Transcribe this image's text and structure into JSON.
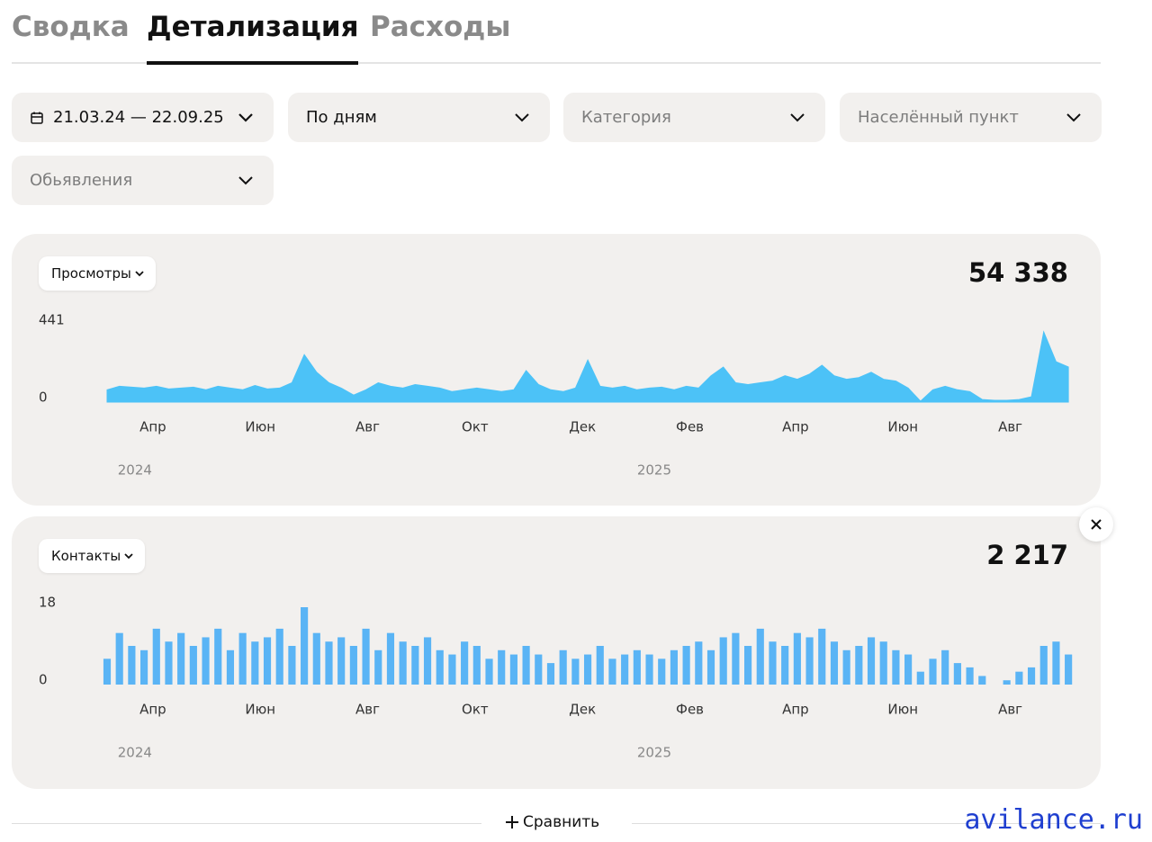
{
  "tabs": {
    "items": [
      "Сводка",
      "Детализация",
      "Расходы"
    ],
    "active": 1
  },
  "filters": {
    "period": "21.03.24 — 22.09.25",
    "grouping": "По дням",
    "category": "Категория",
    "locality": "Населённый пункт",
    "listings": "Обьявления"
  },
  "charts": [
    {
      "type": "area",
      "metric": "Просмотры",
      "total": "54 338",
      "color": "#4cc2f7",
      "x": [
        0,
        7,
        14,
        21,
        28,
        35,
        42,
        49,
        56,
        63,
        70,
        77,
        84,
        91,
        98,
        105,
        112,
        119,
        126,
        133,
        140,
        147,
        154,
        161,
        168,
        175,
        182,
        189,
        196,
        203,
        210,
        217,
        224,
        231,
        238,
        245,
        252,
        259,
        266,
        273,
        280,
        287,
        294,
        301,
        308,
        315,
        322,
        329,
        336,
        343,
        350,
        357,
        364,
        371,
        378,
        385,
        392,
        399,
        406,
        413,
        420,
        427,
        434,
        441,
        448,
        455,
        462,
        469,
        476,
        483,
        490,
        497,
        504,
        511,
        518,
        525,
        532,
        539,
        546
      ],
      "values": [
        70,
        90,
        85,
        80,
        90,
        75,
        80,
        85,
        70,
        90,
        80,
        70,
        95,
        75,
        80,
        110,
        270,
        170,
        110,
        80,
        40,
        70,
        110,
        90,
        80,
        100,
        90,
        80,
        60,
        70,
        80,
        70,
        60,
        70,
        180,
        100,
        70,
        60,
        80,
        240,
        90,
        80,
        90,
        70,
        80,
        85,
        70,
        90,
        80,
        150,
        200,
        110,
        100,
        110,
        120,
        150,
        130,
        160,
        210,
        150,
        130,
        140,
        170,
        130,
        120,
        80,
        5,
        70,
        90,
        70,
        60,
        15,
        10,
        10,
        15,
        30,
        400,
        230,
        200
      ],
      "xlim": [
        0,
        549
      ],
      "ylim": [
        0,
        441
      ],
      "yticks": [
        0,
        441
      ],
      "xticks": [
        {
          "value": 26,
          "label": "Апр"
        },
        {
          "value": 87,
          "label": "Июн"
        },
        {
          "value": 148,
          "label": "Авг"
        },
        {
          "value": 209,
          "label": "Окт"
        },
        {
          "value": 270,
          "label": "Дек"
        },
        {
          "value": 331,
          "label": "Фев"
        },
        {
          "value": 391,
          "label": "Апр"
        },
        {
          "value": 452,
          "label": "Июн"
        },
        {
          "value": 513,
          "label": "Авг"
        }
      ],
      "year_ticks": [
        {
          "value": 6,
          "label": "2024"
        },
        {
          "value": 301,
          "label": "2025"
        }
      ]
    },
    {
      "type": "bar",
      "metric": "Контакты",
      "total": "2 217",
      "color": "#5ab4f5",
      "x": [
        0,
        7,
        14,
        21,
        28,
        35,
        42,
        49,
        56,
        63,
        70,
        77,
        84,
        91,
        98,
        105,
        112,
        119,
        126,
        133,
        140,
        147,
        154,
        161,
        168,
        175,
        182,
        189,
        196,
        203,
        210,
        217,
        224,
        231,
        238,
        245,
        252,
        259,
        266,
        273,
        280,
        287,
        294,
        301,
        308,
        315,
        322,
        329,
        336,
        343,
        350,
        357,
        364,
        371,
        378,
        385,
        392,
        399,
        406,
        413,
        420,
        427,
        434,
        441,
        448,
        455,
        462,
        469,
        476,
        483,
        490,
        497,
        504,
        511,
        518,
        525,
        532,
        539,
        546
      ],
      "values": [
        6,
        12,
        9,
        8,
        13,
        10,
        12,
        9,
        11,
        13,
        8,
        12,
        10,
        11,
        13,
        9,
        18,
        12,
        10,
        11,
        9,
        13,
        8,
        12,
        10,
        9,
        11,
        8,
        7,
        10,
        9,
        6,
        8,
        7,
        9,
        7,
        5,
        8,
        6,
        7,
        9,
        6,
        7,
        8,
        7,
        6,
        8,
        9,
        10,
        8,
        11,
        12,
        9,
        13,
        10,
        9,
        12,
        11,
        13,
        10,
        8,
        9,
        11,
        10,
        8,
        7,
        3,
        6,
        8,
        5,
        4,
        2,
        0,
        1,
        3,
        4,
        9,
        10,
        7
      ],
      "xlim": [
        0,
        549
      ],
      "ylim": [
        0,
        18
      ],
      "yticks": [
        0,
        18
      ],
      "xticks": [
        {
          "value": 26,
          "label": "Апр"
        },
        {
          "value": 87,
          "label": "Июн"
        },
        {
          "value": 148,
          "label": "Авг"
        },
        {
          "value": 209,
          "label": "Окт"
        },
        {
          "value": 270,
          "label": "Дек"
        },
        {
          "value": 331,
          "label": "Фев"
        },
        {
          "value": 391,
          "label": "Апр"
        },
        {
          "value": 452,
          "label": "Июн"
        },
        {
          "value": 513,
          "label": "Авг"
        }
      ],
      "year_ticks": [
        {
          "value": 6,
          "label": "2024"
        },
        {
          "value": 301,
          "label": "2025"
        }
      ]
    }
  ],
  "compare": "Сравнить",
  "watermark": "avilance.ru"
}
